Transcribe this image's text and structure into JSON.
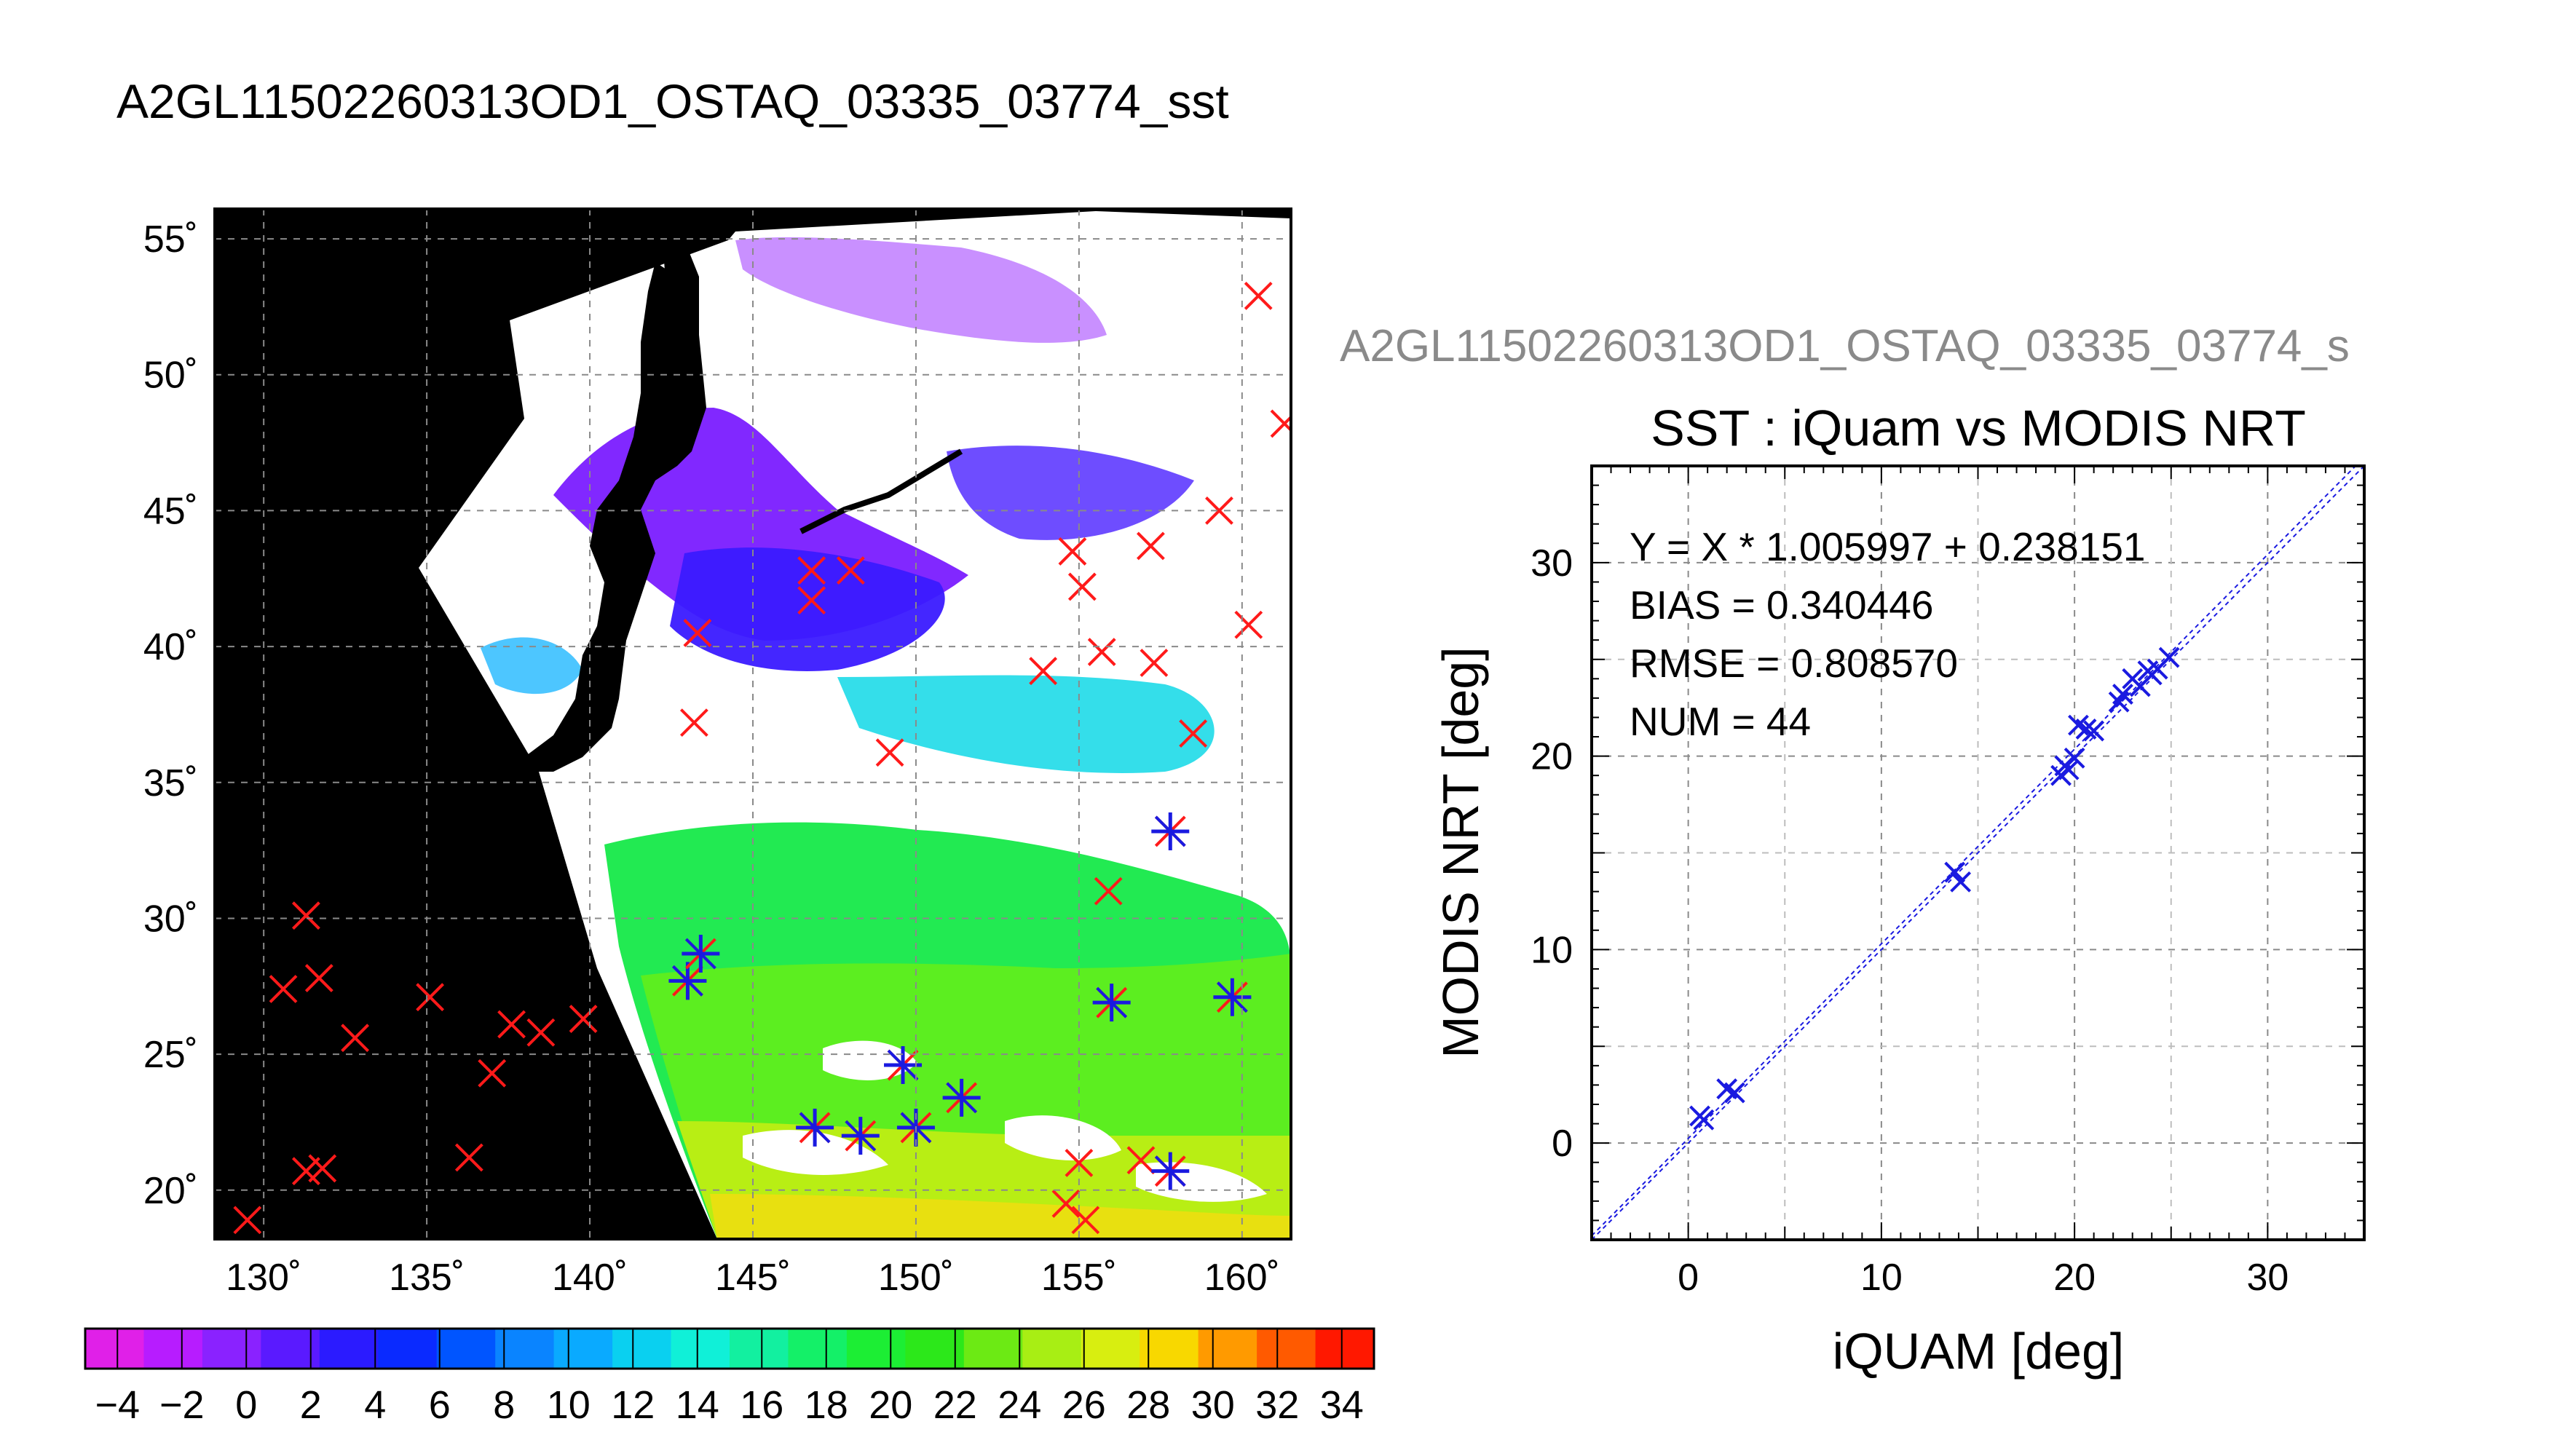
{
  "page_title": "A2GL11502260313OD1_OSTAQ_03335_03774_sst",
  "chart_data": [
    {
      "type": "map",
      "title": "A2GL11502260313OD1_OSTAQ_03335_03774_sst",
      "lon_range": [
        128.5,
        161.5
      ],
      "lat_range": [
        18.2,
        56.1
      ],
      "grid": true,
      "lon_ticks": [
        "130˚",
        "135˚",
        "140˚",
        "145˚",
        "150˚",
        "155˚",
        "160˚"
      ],
      "lat_ticks": [
        "55˚",
        "50˚",
        "45˚",
        "40˚",
        "35˚",
        "30˚",
        "25˚",
        "20˚"
      ],
      "red_marks": [
        [
          160.5,
          52.9
        ],
        [
          161.3,
          48.2
        ],
        [
          159.3,
          45.0
        ],
        [
          157.2,
          43.7
        ],
        [
          154.8,
          43.5
        ],
        [
          155.1,
          42.2
        ],
        [
          146.8,
          42.8
        ],
        [
          148.0,
          42.8
        ],
        [
          146.8,
          41.7
        ],
        [
          143.3,
          40.5
        ],
        [
          160.2,
          40.8
        ],
        [
          153.9,
          39.1
        ],
        [
          155.7,
          39.8
        ],
        [
          157.3,
          39.4
        ],
        [
          143.2,
          37.2
        ],
        [
          149.2,
          36.1
        ],
        [
          158.5,
          36.8
        ],
        [
          155.9,
          31.0
        ],
        [
          131.3,
          30.1
        ],
        [
          130.6,
          27.4
        ],
        [
          131.7,
          27.8
        ],
        [
          135.1,
          27.1
        ],
        [
          132.8,
          25.6
        ],
        [
          137.6,
          26.1
        ],
        [
          138.5,
          25.8
        ],
        [
          139.8,
          26.3
        ],
        [
          137.0,
          24.3
        ],
        [
          136.3,
          21.2
        ],
        [
          131.3,
          20.7
        ],
        [
          131.8,
          20.8
        ],
        [
          129.5,
          18.9
        ],
        [
          155.0,
          21.0
        ],
        [
          156.9,
          21.1
        ],
        [
          154.6,
          19.5
        ],
        [
          155.2,
          18.9
        ],
        [
          157.8,
          20.7
        ]
      ],
      "blue_marks": [
        [
          157.8,
          33.2
        ],
        [
          143.0,
          27.7
        ],
        [
          143.4,
          28.7
        ],
        [
          156.0,
          26.9
        ],
        [
          159.7,
          27.1
        ],
        [
          151.4,
          23.4
        ],
        [
          149.6,
          24.6
        ],
        [
          146.9,
          22.3
        ],
        [
          148.3,
          22.0
        ],
        [
          150.0,
          22.3
        ],
        [
          157.8,
          20.7
        ]
      ],
      "colorbar": {
        "label_values": [
          "−4",
          "−2",
          "0",
          "2",
          "4",
          "6",
          "8",
          "10",
          "12",
          "14",
          "16",
          "18",
          "20",
          "22",
          "24",
          "26",
          "28",
          "30",
          "32",
          "34"
        ],
        "range": [
          -5,
          35
        ],
        "step": 2,
        "colors": [
          "#e020e8",
          "#b71cff",
          "#8a22ff",
          "#5a1aff",
          "#2b1bff",
          "#0a2aff",
          "#0055ff",
          "#0a84ff",
          "#0aaaff",
          "#0ad0f0",
          "#10f0d8",
          "#12f0a0",
          "#14f068",
          "#1cee34",
          "#2ce81a",
          "#6cea14",
          "#a8ee14",
          "#d8ee10",
          "#f8d800",
          "#ff9a00",
          "#ff5a00",
          "#ff1800"
        ]
      }
    },
    {
      "type": "scatter",
      "title_gray": "A2GL11502260313OD1_OSTAQ_03335_03774_s",
      "title": "SST : iQuam vs MODIS NRT",
      "xlabel": "iQUAM [deg]",
      "ylabel": "MODIS NRT [deg]",
      "xlim": [
        -5,
        35
      ],
      "ylim": [
        -5,
        35
      ],
      "x_ticks": [
        "0",
        "10",
        "20",
        "30"
      ],
      "y_ticks": [
        "0",
        "10",
        "20",
        "30"
      ],
      "grid": true,
      "stats": {
        "equation": "Y = X * 1.005997 + 0.238151",
        "bias": "BIAS = 0.340446",
        "rmse": "RMSE = 0.808570",
        "num": "NUM = 44"
      },
      "fit": {
        "slope": 1.005997,
        "intercept": 0.238151
      },
      "points": [
        [
          0.6,
          1.4
        ],
        [
          0.8,
          1.2
        ],
        [
          2.0,
          2.8
        ],
        [
          2.4,
          2.6
        ],
        [
          13.8,
          14.0
        ],
        [
          14.1,
          13.5
        ],
        [
          19.3,
          19.0
        ],
        [
          19.5,
          19.5
        ],
        [
          19.7,
          19.3
        ],
        [
          20.0,
          19.9
        ],
        [
          20.2,
          21.6
        ],
        [
          20.6,
          21.4
        ],
        [
          21.0,
          21.3
        ],
        [
          22.3,
          22.8
        ],
        [
          22.5,
          23.2
        ],
        [
          23.0,
          24.0
        ],
        [
          23.4,
          23.6
        ],
        [
          23.8,
          24.4
        ],
        [
          24.3,
          24.5
        ],
        [
          24.9,
          25.1
        ],
        [
          24.0,
          24.2
        ]
      ],
      "marker_color": "#1a1ae0"
    }
  ]
}
